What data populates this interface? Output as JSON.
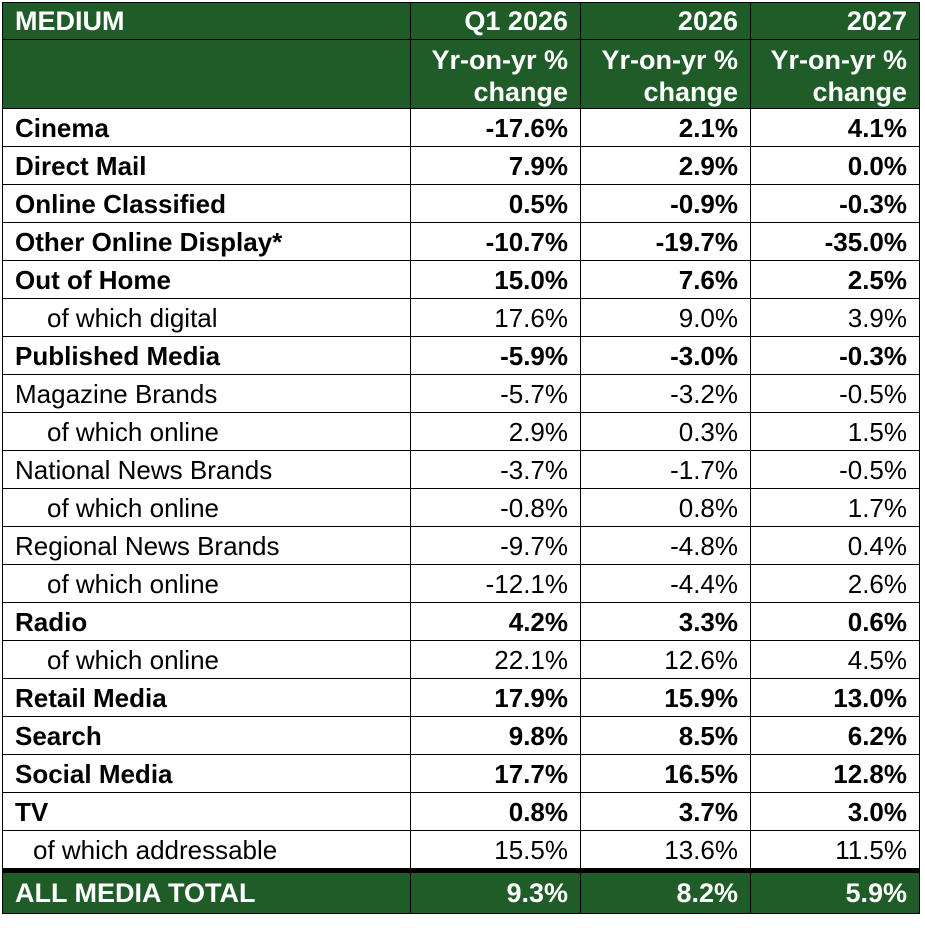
{
  "header": {
    "medium_label": "MEDIUM",
    "columns": [
      "Q1 2026",
      "2026",
      "2027"
    ],
    "subheaders": [
      "Yr-on-yr % change",
      "Yr-on-yr % change",
      "Yr-on-yr % change"
    ]
  },
  "rows": [
    {
      "label": "Cinema",
      "values": [
        "-17.6%",
        "2.1%",
        "4.1%"
      ]
    },
    {
      "label": "Direct Mail",
      "values": [
        "7.9%",
        "2.9%",
        "0.0%"
      ]
    },
    {
      "label": "Online Classified",
      "values": [
        "0.5%",
        "-0.9%",
        "-0.3%"
      ]
    },
    {
      "label": "Other Online Display*",
      "values": [
        "-10.7%",
        "-19.7%",
        "-35.0%"
      ]
    },
    {
      "label": "Out of Home",
      "values": [
        "15.0%",
        "7.6%",
        "2.5%"
      ]
    },
    {
      "label": "of which digital",
      "values": [
        "17.6%",
        "9.0%",
        "3.9%"
      ]
    },
    {
      "label": "Published Media",
      "values": [
        "-5.9%",
        "-3.0%",
        "-0.3%"
      ]
    },
    {
      "label": "Magazine Brands",
      "values": [
        "-5.7%",
        "-3.2%",
        "-0.5%"
      ]
    },
    {
      "label": "of which online",
      "values": [
        "2.9%",
        "0.3%",
        "1.5%"
      ]
    },
    {
      "label": "National News Brands",
      "values": [
        "-3.7%",
        "-1.7%",
        "-0.5%"
      ]
    },
    {
      "label": "of which online",
      "values": [
        "-0.8%",
        "0.8%",
        "1.7%"
      ]
    },
    {
      "label": "Regional News Brands",
      "values": [
        "-9.7%",
        "-4.8%",
        "0.4%"
      ]
    },
    {
      "label": "of which online",
      "values": [
        "-12.1%",
        "-4.4%",
        "2.6%"
      ]
    },
    {
      "label": "Radio",
      "values": [
        "4.2%",
        "3.3%",
        "0.6%"
      ]
    },
    {
      "label": "of which online",
      "values": [
        "22.1%",
        "12.6%",
        "4.5%"
      ]
    },
    {
      "label": "Retail Media",
      "values": [
        "17.9%",
        "15.9%",
        "13.0%"
      ]
    },
    {
      "label": "Search",
      "values": [
        "9.8%",
        "8.5%",
        "6.2%"
      ]
    },
    {
      "label": "Social Media",
      "values": [
        "17.7%",
        "16.5%",
        "12.8%"
      ]
    },
    {
      "label": "TV",
      "values": [
        "0.8%",
        "3.7%",
        "3.0%"
      ]
    },
    {
      "label": "of which addressable",
      "values": [
        "15.5%",
        "13.6%",
        "11.5%"
      ]
    }
  ],
  "total": {
    "label": "ALL MEDIA TOTAL",
    "values": [
      "9.3%",
      "8.2%",
      "5.9%"
    ]
  },
  "colors": {
    "header_bg": "#1f5c28",
    "header_text": "#ffffff",
    "border": "#000000"
  }
}
